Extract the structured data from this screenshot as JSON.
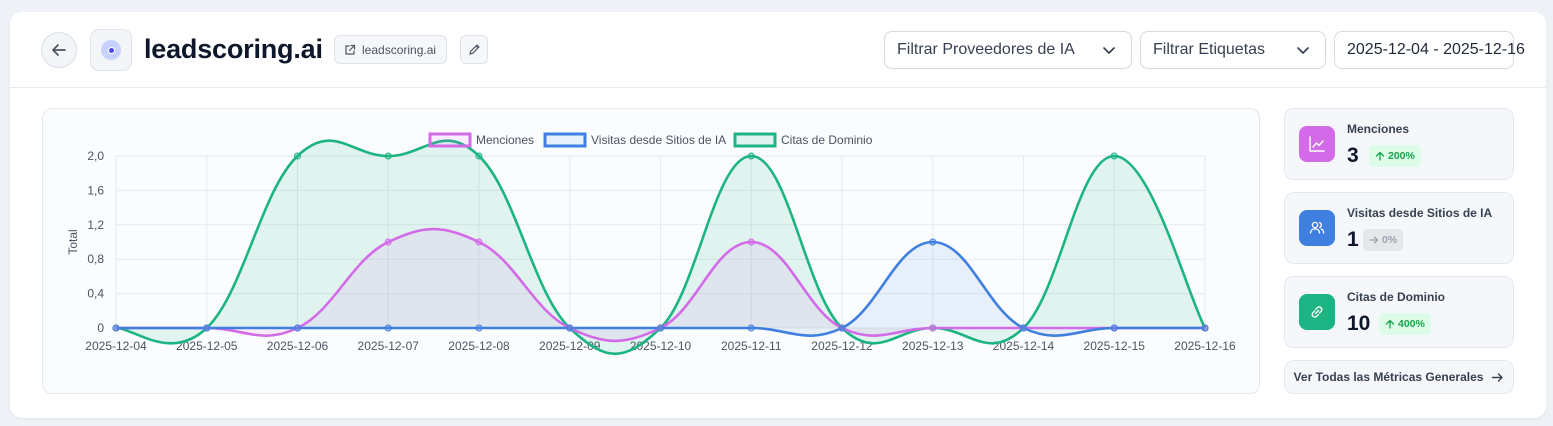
{
  "header": {
    "title": "leadscoring.ai",
    "domain_link": "leadscoring.ai",
    "back_icon": "arrow-left-icon",
    "edit_icon": "pencil-icon",
    "filter_providers": "Filtrar Proveedores de IA",
    "filter_tags": "Filtrar Etiquetas",
    "date_range": "2025-12-04 - 2025-12-16"
  },
  "colors": {
    "menciones": "#d36ae8",
    "visitas": "#3f7fe0",
    "citas": "#1db483",
    "text": "#1f2937"
  },
  "chart_data": {
    "type": "line",
    "ylabel": "Total",
    "ylim": [
      0,
      2
    ],
    "yticks": [
      "2,0",
      "1,6",
      "1,2",
      "0,8",
      "0,4",
      "0"
    ],
    "x": [
      "2025-12-04",
      "2025-12-05",
      "2025-12-06",
      "2025-12-07",
      "2025-12-08",
      "2025-12-09",
      "2025-12-10",
      "2025-12-11",
      "2025-12-12",
      "2025-12-13",
      "2025-12-14",
      "2025-12-15",
      "2025-12-16"
    ],
    "legend_position": "top-center",
    "grid": true,
    "series": [
      {
        "name": "Menciones",
        "values": [
          0,
          0,
          0,
          1,
          1,
          0,
          0,
          1,
          0,
          0,
          0,
          0,
          0
        ]
      },
      {
        "name": "Visitas desde Sitios de IA",
        "values": [
          0,
          0,
          0,
          0,
          0,
          0,
          0,
          0,
          0,
          1,
          0,
          0,
          0
        ]
      },
      {
        "name": "Citas de Dominio",
        "values": [
          0,
          0,
          2,
          2,
          2,
          0,
          0,
          2,
          0,
          0,
          0,
          2,
          0
        ]
      }
    ]
  },
  "metrics": [
    {
      "label": "Menciones",
      "value": "3",
      "change": "200%",
      "icon": "trending-chart-icon",
      "trend": "up"
    },
    {
      "label": "Visitas desde Sitios de IA",
      "value": "1",
      "change": "0%",
      "icon": "users-icon",
      "trend": "flat"
    },
    {
      "label": "Citas de Dominio",
      "value": "10",
      "change": "400%",
      "icon": "link-icon",
      "trend": "up"
    }
  ],
  "all_metrics_label": "Ver Todas las Métricas Generales"
}
